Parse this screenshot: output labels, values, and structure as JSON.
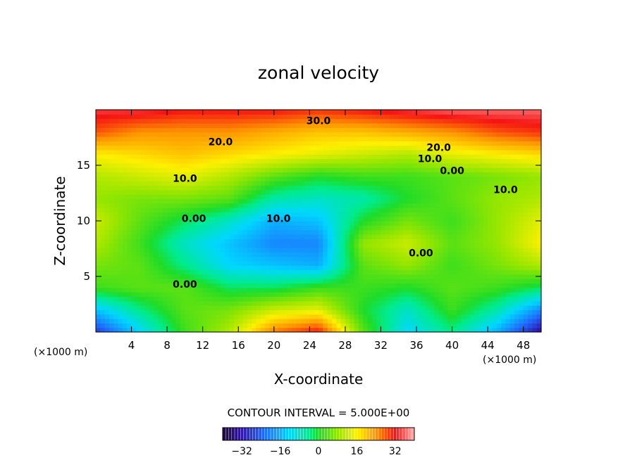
{
  "chart_data": {
    "type": "heatmap",
    "title": "zonal velocity",
    "xlabel": "X-coordinate",
    "ylabel": "Z-coordinate",
    "x_unit_left": "(×1000 m)",
    "x_unit_right": "(×1000 m)",
    "xlim": [
      0,
      50
    ],
    "ylim": [
      0,
      20
    ],
    "x_ticks": [
      4,
      8,
      12,
      16,
      20,
      24,
      28,
      32,
      36,
      40,
      44,
      48
    ],
    "y_ticks": [
      5,
      10,
      15
    ],
    "contour_interval_text": "CONTOUR INTERVAL = 5.000E+00",
    "contour_interval": 5.0,
    "colorbar": {
      "range": [
        -40,
        40
      ],
      "ticks": [
        -32,
        -16,
        0,
        16,
        32
      ]
    },
    "contour_labels": [
      {
        "text": "30.0",
        "x": 25,
        "y": 18.7
      },
      {
        "text": "20.0",
        "x": 14,
        "y": 16.8
      },
      {
        "text": "20.0",
        "x": 38.5,
        "y": 16.3
      },
      {
        "text": "10.0",
        "x": 37.5,
        "y": 15.3
      },
      {
        "text": "0.00",
        "x": 40,
        "y": 14.2
      },
      {
        "text": "10.0",
        "x": 10,
        "y": 13.5
      },
      {
        "text": "10.0",
        "x": 46,
        "y": 12.5
      },
      {
        "text": "0.00",
        "x": 11,
        "y": 9.9
      },
      {
        "text": "10.0",
        "x": 20.5,
        "y": 9.9
      },
      {
        "text": "0.00",
        "x": 36.5,
        "y": 6.8
      },
      {
        "text": "0.00",
        "x": 10,
        "y": 4.0
      }
    ],
    "grid": {
      "x": [
        0,
        5,
        10,
        15,
        20,
        25,
        30,
        35,
        40,
        45,
        50
      ],
      "z": [
        0,
        2,
        4,
        6,
        8,
        10,
        12,
        14,
        16,
        18,
        20
      ],
      "values": [
        [
          -28,
          -12,
          2,
          10,
          26,
          32,
          4,
          -12,
          -4,
          -16,
          -34
        ],
        [
          -14,
          -4,
          4,
          6,
          12,
          14,
          0,
          -8,
          2,
          -6,
          -20
        ],
        [
          2,
          4,
          4,
          -2,
          -2,
          2,
          2,
          0,
          4,
          2,
          -2
        ],
        [
          6,
          4,
          -4,
          -12,
          -14,
          -16,
          4,
          8,
          2,
          6,
          10
        ],
        [
          10,
          2,
          -8,
          -14,
          -20,
          -20,
          8,
          12,
          4,
          8,
          16
        ],
        [
          12,
          4,
          -2,
          -8,
          -16,
          -14,
          0,
          6,
          2,
          8,
          14
        ],
        [
          8,
          6,
          6,
          4,
          -6,
          -8,
          -6,
          0,
          4,
          8,
          10
        ],
        [
          10,
          12,
          14,
          10,
          4,
          0,
          2,
          2,
          4,
          6,
          8
        ],
        [
          16,
          18,
          20,
          18,
          16,
          14,
          12,
          10,
          14,
          16,
          18
        ],
        [
          28,
          24,
          24,
          24,
          22,
          20,
          20,
          22,
          24,
          28,
          30
        ],
        [
          34,
          34,
          32,
          32,
          32,
          30,
          32,
          34,
          36,
          36,
          36
        ]
      ]
    }
  }
}
